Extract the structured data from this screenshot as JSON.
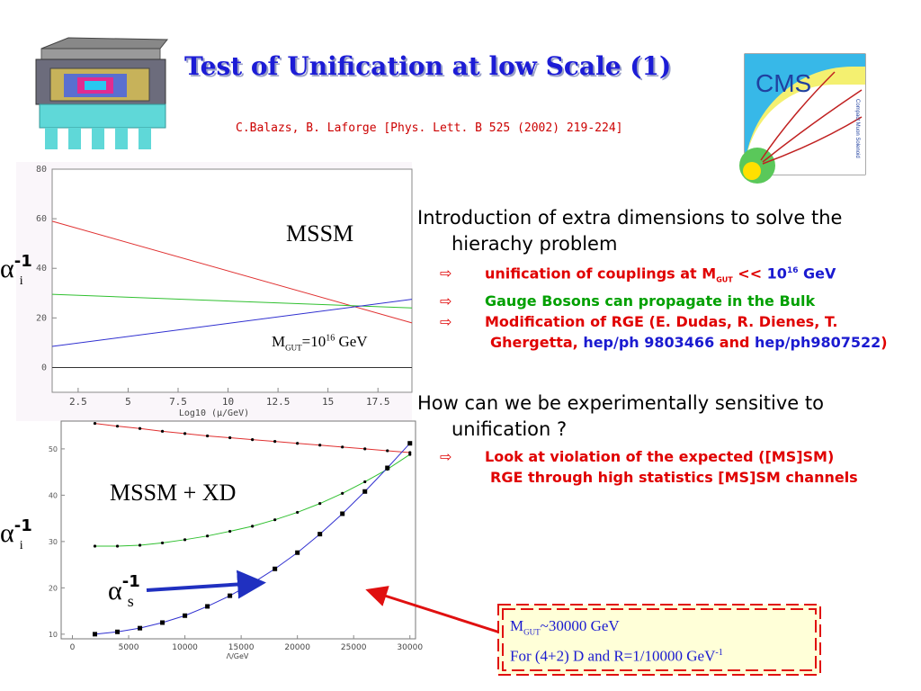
{
  "slide": {
    "title": "Test of Unification at low Scale (1)",
    "citation": "C.Balazs, B. Laforge [Phys. Lett. B 525 (2002) 219-224]",
    "logo_text": "CMS",
    "logo_subtext": "Compact Muon Solenoid"
  },
  "plot_top": {
    "label": "MSSM",
    "annotation": {
      "m": "M",
      "sub": "GUT",
      "eq": "=10",
      "sup": "16",
      "unit": " GeV"
    },
    "side_label": {
      "alpha": "α",
      "sup": "-1",
      "sub": "i"
    },
    "ytick_labels": [
      "0",
      "20",
      "40",
      "60",
      "80"
    ],
    "xtick_labels": [
      "2.5",
      "5",
      "7.5",
      "10",
      "12.5",
      "15",
      "17.5"
    ],
    "xlabel": "Log10 (μ/GeV)"
  },
  "plot_bottom": {
    "label": "MSSM + XD",
    "side_label": {
      "alpha": "α",
      "sup": "-1",
      "sub": "i"
    },
    "alpha_s_label": {
      "alpha": "α",
      "sup": "-1",
      "sub": "s"
    },
    "ytick_labels": [
      "10",
      "20",
      "30",
      "40",
      "50"
    ],
    "xtick_labels": [
      "0",
      "5000",
      "10000",
      "15000",
      "20000",
      "25000",
      "30000"
    ],
    "xlabel": "Λ/GeV"
  },
  "bullets": {
    "b1": "Introduction of extra dimensions to solve the hierachy problem",
    "b1_sub1_red": "unification of couplings at M",
    "b1_sub1_sub": "GUT",
    "b1_sub1_red2": " << ",
    "b1_sub1_blue": "10",
    "b1_sub1_blue_sup": "16",
    "b1_sub1_blue2": " GeV",
    "b1_sub2": "Gauge Bosons can propagate in the Bulk",
    "b1_sub3_red": "Modification of RGE (E. Dudas, R. Dienes, T. Ghergetta, ",
    "b1_sub3_blue1": "hep/ph 9803466",
    "b1_sub3_red2": " and ",
    "b1_sub3_blue2": "hep/ph9807522",
    "b1_sub3_red3": ")",
    "b2": "How can we be experimentally sensitive to unification ?",
    "b2_sub1": "Look at violation of the expected ([MS]SM) RGE through high statistics [MS]SM channels"
  },
  "annotation_box": {
    "line1_m": "M",
    "line1_sub": "GUT",
    "line1_rest": "~30000 GeV",
    "line2": "For (4+2) D and R=1/10000 GeV",
    "line2_sup": "-1"
  },
  "chart_data": [
    {
      "type": "line",
      "title": "MSSM",
      "xlabel": "Log10 (μ/GeV)",
      "ylabel": "",
      "xlim": [
        1.2,
        19.2
      ],
      "ylim": [
        -10,
        80
      ],
      "series": [
        {
          "color": "#e03030",
          "x": [
            1.2,
            19.2
          ],
          "y": [
            59,
            18
          ]
        },
        {
          "color": "#30c030",
          "x": [
            1.2,
            19.2
          ],
          "y": [
            29.5,
            24
          ]
        },
        {
          "color": "#3030d0",
          "x": [
            1.2,
            19.2
          ],
          "y": [
            8.5,
            27.5
          ]
        }
      ]
    },
    {
      "type": "line",
      "title": "MSSM + XD",
      "xlabel": "Λ/GeV",
      "ylabel": "",
      "xlim": [
        -1000,
        30500
      ],
      "ylim": [
        9,
        56
      ],
      "series": [
        {
          "color": "#e03030",
          "x": [
            2000,
            4000,
            6000,
            8000,
            10000,
            12000,
            14000,
            16000,
            18000,
            20000,
            22000,
            24000,
            26000,
            28000,
            30000
          ],
          "y": [
            55.5,
            54.9,
            54.4,
            53.8,
            53.3,
            52.8,
            52.4,
            52.0,
            51.6,
            51.2,
            50.8,
            50.4,
            50.0,
            49.6,
            49.2
          ]
        },
        {
          "color": "#30c030",
          "x": [
            2000,
            4000,
            6000,
            8000,
            10000,
            12000,
            14000,
            16000,
            18000,
            20000,
            22000,
            24000,
            26000,
            28000,
            30000
          ],
          "y": [
            29.0,
            29.0,
            29.2,
            29.7,
            30.4,
            31.2,
            32.2,
            33.3,
            34.7,
            36.3,
            38.2,
            40.4,
            42.9,
            45.6,
            48.8
          ]
        },
        {
          "color": "#3030d0",
          "x": [
            2000,
            4000,
            6000,
            8000,
            10000,
            12000,
            14000,
            16000,
            18000,
            20000,
            22000,
            24000,
            26000,
            28000,
            30000
          ],
          "y": [
            10.0,
            10.5,
            11.3,
            12.5,
            14.0,
            16.0,
            18.3,
            21.0,
            24.1,
            27.6,
            31.6,
            36.0,
            40.8,
            45.9,
            51.2
          ]
        }
      ]
    }
  ]
}
